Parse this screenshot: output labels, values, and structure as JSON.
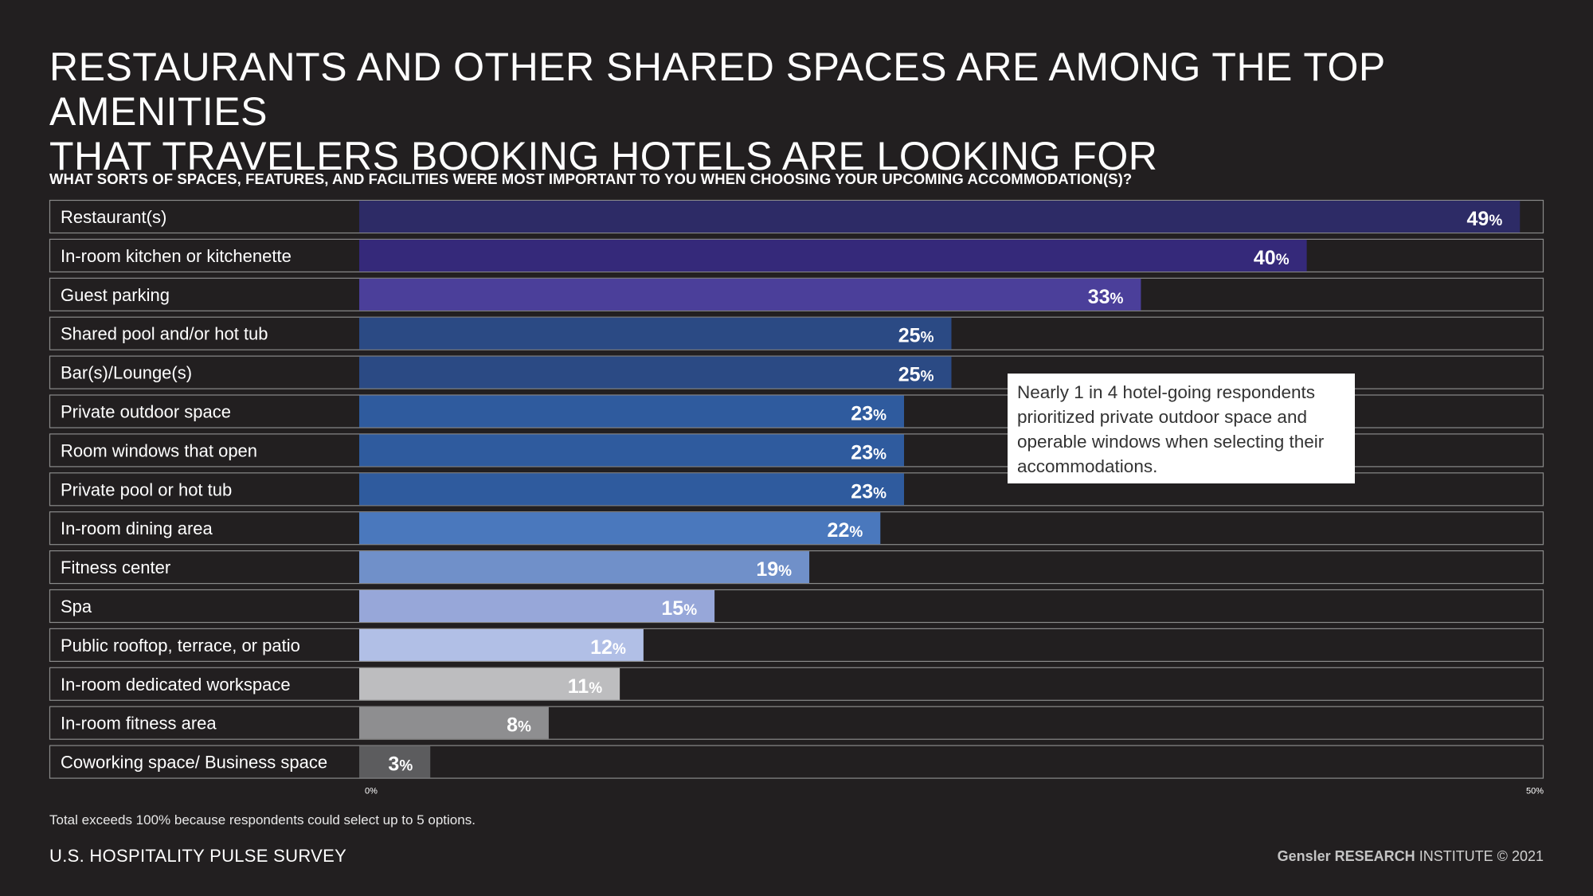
{
  "title_lines": [
    "RESTAURANTS AND OTHER SHARED SPACES ARE AMONG THE TOP AMENITIES",
    "THAT TRAVELERS BOOKING HOTELS ARE LOOKING FOR"
  ],
  "question": "WHAT SORTS OF SPACES, FEATURES, AND FACILITIES WERE MOST IMPORTANT TO YOU WHEN CHOOSING YOUR UPCOMING ACCOMMODATION(S)?",
  "callout": "Nearly 1 in 4 hotel-going respondents prioritized private outdoor space and operable windows when selecting their accommodations.",
  "footnote": "Total exceeds 100% because respondents could select up to 5 options.",
  "survey": "U.S. HOSPITALITY PULSE SURVEY",
  "credit": {
    "brand": "Gensler RESEARCH",
    "rest": " INSTITUTE © 2021"
  },
  "chart_data": {
    "type": "bar",
    "orientation": "horizontal",
    "title": "WHAT SORTS OF SPACES, FEATURES, AND FACILITIES WERE MOST IMPORTANT TO YOU WHEN CHOOSING YOUR UPCOMING ACCOMMODATION(S)?",
    "categories": [
      "Restaurant(s)",
      "In-room kitchen or kitchenette",
      "Guest parking",
      "Shared pool and/or hot tub",
      "Bar(s)/Lounge(s)",
      "Private outdoor space",
      "Room windows that open",
      "Private pool or hot tub",
      "In-room dining area",
      "Fitness center",
      "Spa",
      "Public rooftop, terrace, or patio",
      "In-room dedicated workspace",
      "In-room fitness area",
      "Coworking space/ Business space"
    ],
    "values": [
      49,
      40,
      33,
      25,
      25,
      23,
      23,
      23,
      22,
      19,
      15,
      12,
      11,
      8,
      3
    ],
    "value_suffix": "%",
    "colors": [
      "#2d2b66",
      "#35297a",
      "#4b3f9a",
      "#2b4a84",
      "#2b4a84",
      "#2f5b9e",
      "#2f5b9e",
      "#2f5b9e",
      "#4a78bd",
      "#7090c9",
      "#97a7d9",
      "#b1bfe6",
      "#bdbdbf",
      "#8e8e90",
      "#5c5c5e"
    ],
    "xlim": [
      0,
      50
    ],
    "x_ticks": [
      "0%",
      "50%"
    ],
    "xlabel": "",
    "ylabel": ""
  }
}
